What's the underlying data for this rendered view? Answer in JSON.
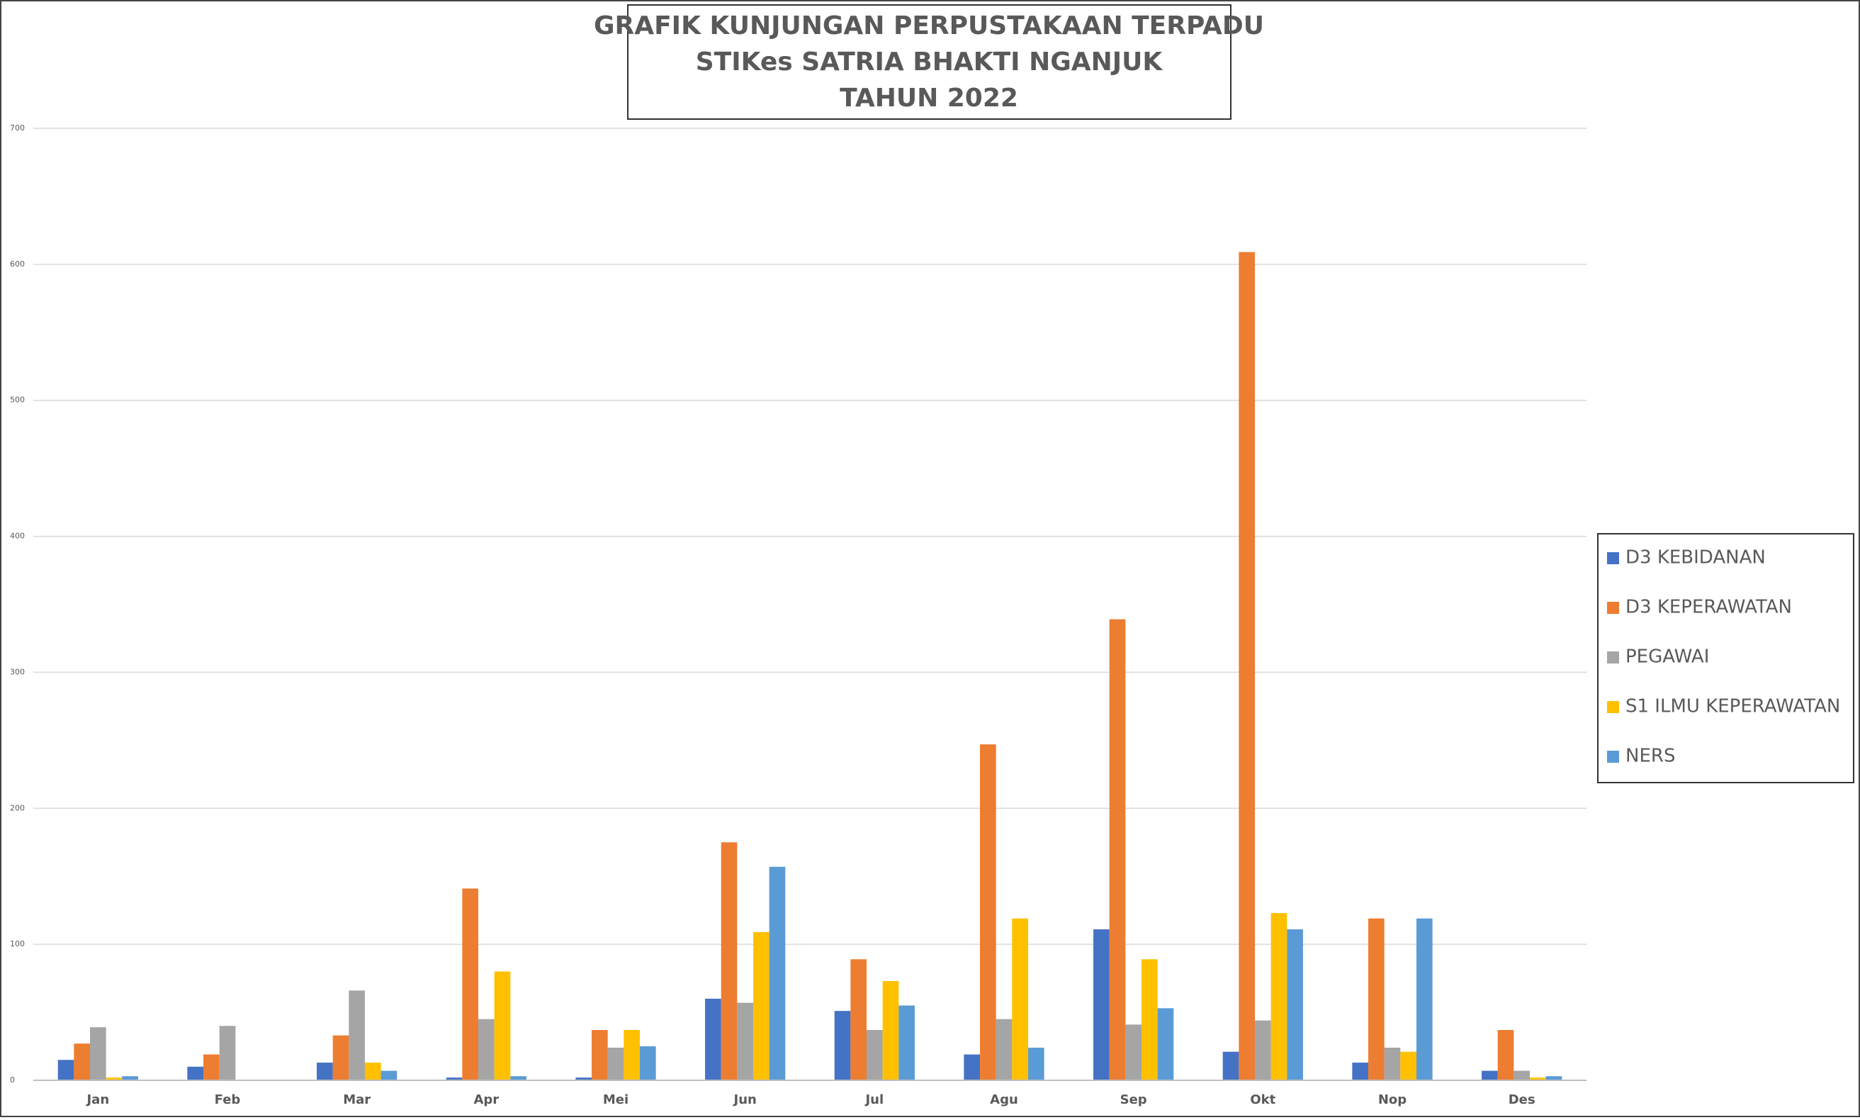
{
  "chart_data": {
    "type": "bar",
    "title": [
      "GRAFIK KUNJUNGAN PERPUSTAKAAN TERPADU",
      "STIKes SATRIA BHAKTI NGANJUK",
      "TAHUN 2022"
    ],
    "categories": [
      "Jan",
      "Feb",
      "Mar",
      "Apr",
      "Mei",
      "Jun",
      "Jul",
      "Agu",
      "Sep",
      "Okt",
      "Nop",
      "Des"
    ],
    "series": [
      {
        "name": "D3 KEBIDANAN",
        "color": "#4472c4",
        "values": [
          15,
          10,
          13,
          2,
          2,
          60,
          51,
          19,
          111,
          21,
          13,
          7
        ]
      },
      {
        "name": "D3 KEPERAWATAN",
        "color": "#ed7d31",
        "values": [
          27,
          19,
          33,
          141,
          37,
          175,
          89,
          247,
          339,
          609,
          119,
          37
        ]
      },
      {
        "name": "PEGAWAI",
        "color": "#a5a5a5",
        "values": [
          39,
          40,
          66,
          45,
          24,
          57,
          37,
          45,
          41,
          44,
          24,
          7
        ]
      },
      {
        "name": "S1 ILMU KEPERAWATAN",
        "color": "#ffc000",
        "values": [
          2,
          0,
          13,
          80,
          37,
          109,
          73,
          119,
          89,
          123,
          21,
          2
        ]
      },
      {
        "name": "NERS",
        "color": "#5b9bd5",
        "values": [
          3,
          0,
          7,
          3,
          25,
          157,
          55,
          24,
          53,
          111,
          119,
          3
        ]
      }
    ],
    "ylim": [
      0,
      700
    ],
    "yticks": [
      0,
      100,
      200,
      300,
      400,
      500,
      600,
      700
    ],
    "grid": true,
    "legend": "right"
  }
}
